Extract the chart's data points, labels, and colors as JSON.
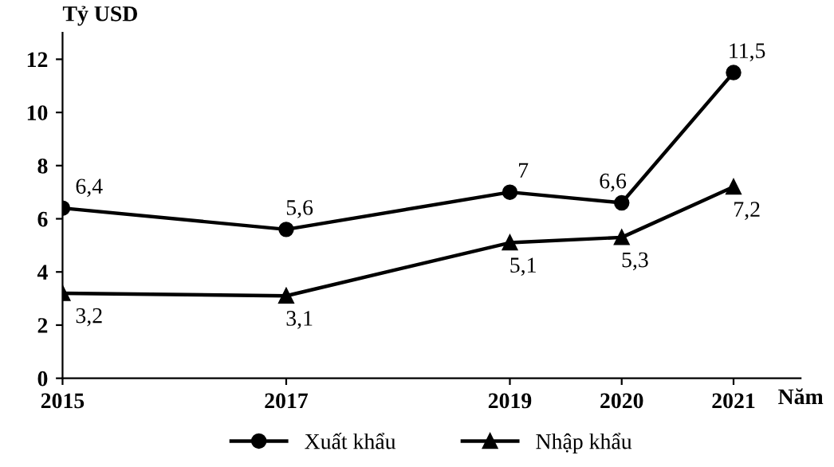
{
  "chart_data": {
    "type": "line",
    "ylabel": "Tỷ USD",
    "xlabel": "Năm",
    "x": [
      2015,
      2017,
      2019,
      2020,
      2021
    ],
    "xlim": [
      2015,
      2021.6
    ],
    "xticks": [
      2015,
      2017,
      2019,
      2020,
      2021
    ],
    "ylim": [
      0,
      13
    ],
    "yticks": [
      0,
      2,
      4,
      6,
      8,
      10,
      12
    ],
    "series": [
      {
        "name": "Xuất khẩu",
        "color": "#000000",
        "marker": "circle",
        "values": [
          6.4,
          5.6,
          7,
          6.6,
          11.5
        ],
        "value_labels": [
          "6,4",
          "5,6",
          "7",
          "6,6",
          "11,5"
        ]
      },
      {
        "name": "Nhập khẩu",
        "color": "#000000",
        "marker": "triangle",
        "values": [
          3.2,
          3.1,
          5.1,
          5.3,
          7.2
        ],
        "value_labels": [
          "3,2",
          "3,1",
          "5,1",
          "5,3",
          "7,2"
        ]
      }
    ],
    "grid": false,
    "legend": "bottom",
    "line_style": "solid"
  }
}
